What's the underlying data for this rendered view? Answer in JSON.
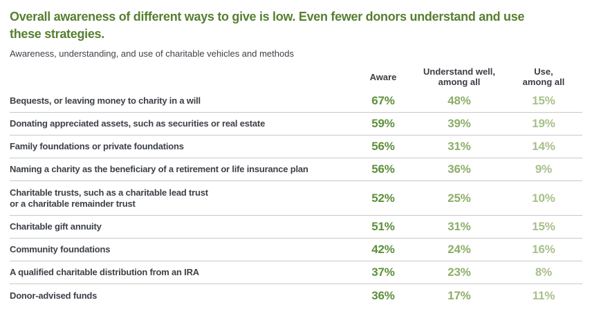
{
  "header": {
    "title_lines": [
      "Overall awareness of different ways to give is low. Even fewer donors understand and use",
      "these strategies."
    ]
  },
  "chart_data": {
    "type": "table",
    "title": "Overall awareness of different ways to give is low. Even fewer donors understand and use these strategies.",
    "subtitle": "Awareness, understanding, and use of charitable vehicles and methods",
    "units": "%",
    "columns": [
      "Aware",
      "Understand well,\namong all",
      "Use,\namong all"
    ],
    "rows": [
      {
        "label": "Bequests, or leaving money to charity in a will",
        "aware": 67,
        "understand_well": 48,
        "use": 15
      },
      {
        "label": "Donating appreciated assets, such as securities or real estate",
        "aware": 59,
        "understand_well": 39,
        "use": 19
      },
      {
        "label": "Family foundations or private foundations",
        "aware": 56,
        "understand_well": 31,
        "use": 14
      },
      {
        "label": "Naming a charity as the beneficiary of a retirement or life insurance plan",
        "aware": 56,
        "understand_well": 36,
        "use": 9
      },
      {
        "label": "Charitable trusts, such as a charitable lead trust\nor a charitable remainder trust",
        "aware": 52,
        "understand_well": 25,
        "use": 10
      },
      {
        "label": "Charitable gift annuity",
        "aware": 51,
        "understand_well": 31,
        "use": 15
      },
      {
        "label": "Community foundations",
        "aware": 42,
        "understand_well": 24,
        "use": 16
      },
      {
        "label": "A qualified charitable distribution from an IRA",
        "aware": 37,
        "understand_well": 23,
        "use": 8
      },
      {
        "label": "Donor-advised funds",
        "aware": 36,
        "understand_well": 17,
        "use": 11
      }
    ]
  },
  "colors": {
    "title_green": "#567f30",
    "aware_green": "#5d8f39",
    "understand_green": "#8ead69",
    "use_green": "#a8bf8b",
    "label_gray": "#3d4147",
    "header_gray": "#3a3d42",
    "divider_gray": "#c8c8c8"
  }
}
